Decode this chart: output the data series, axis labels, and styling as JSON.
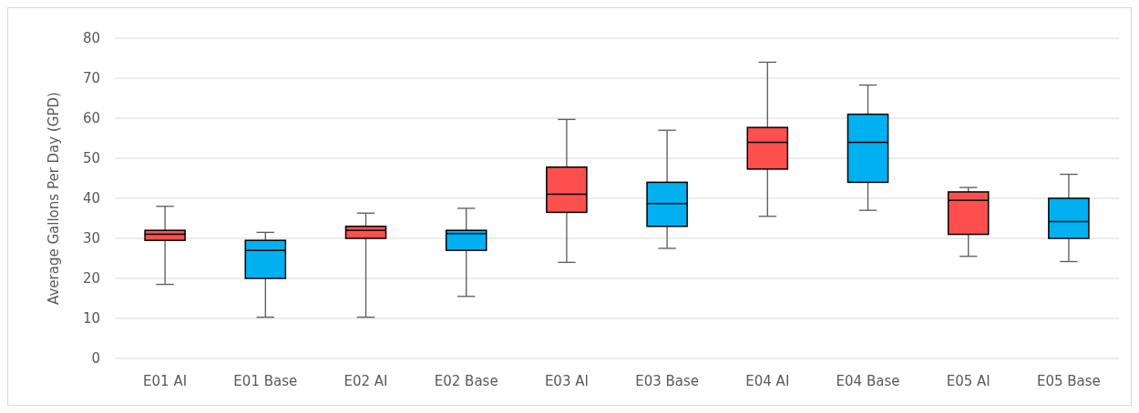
{
  "chart_data": {
    "type": "box",
    "ylabel": "Average Gallons Per Day (GPD)",
    "categories": [
      "E01 AI",
      "E01 Base",
      "E02 AI",
      "E02 Base",
      "E03 AI",
      "E03 Base",
      "E04 AI",
      "E04 Base",
      "E05 AI",
      "E05 Base"
    ],
    "colors": [
      "#fe4f4f",
      "#00b0f0",
      "#fe4f4f",
      "#00b0f0",
      "#fe4f4f",
      "#00b0f0",
      "#fe4f4f",
      "#00b0f0",
      "#fe4f4f",
      "#00b0f0"
    ],
    "boxes": [
      {
        "low": 18.5,
        "q1": 29.5,
        "median": 31,
        "q3": 32,
        "high": 38
      },
      {
        "low": 10.3,
        "q1": 20,
        "median": 27,
        "q3": 29.5,
        "high": 31.5
      },
      {
        "low": 10.3,
        "q1": 30,
        "median": 32,
        "q3": 33,
        "high": 36.3
      },
      {
        "low": 15.5,
        "q1": 27,
        "median": 31.2,
        "q3": 32,
        "high": 37.5
      },
      {
        "low": 24,
        "q1": 36.5,
        "median": 41,
        "q3": 47.8,
        "high": 59.7
      },
      {
        "low": 27.5,
        "q1": 33,
        "median": 38.7,
        "q3": 44,
        "high": 57
      },
      {
        "low": 35.5,
        "q1": 47.3,
        "median": 54,
        "q3": 57.7,
        "high": 74
      },
      {
        "low": 37,
        "q1": 44,
        "median": 54,
        "q3": 61,
        "high": 68.3
      },
      {
        "low": 25.5,
        "q1": 31,
        "median": 39.5,
        "q3": 41.6,
        "high": 42.7
      },
      {
        "low": 24.2,
        "q1": 30,
        "median": 34.2,
        "q3": 40,
        "high": 46
      }
    ],
    "ylim": [
      0,
      80
    ],
    "yticks": [
      0,
      10,
      20,
      30,
      40,
      50,
      60,
      70,
      80
    ],
    "grid": "y"
  }
}
